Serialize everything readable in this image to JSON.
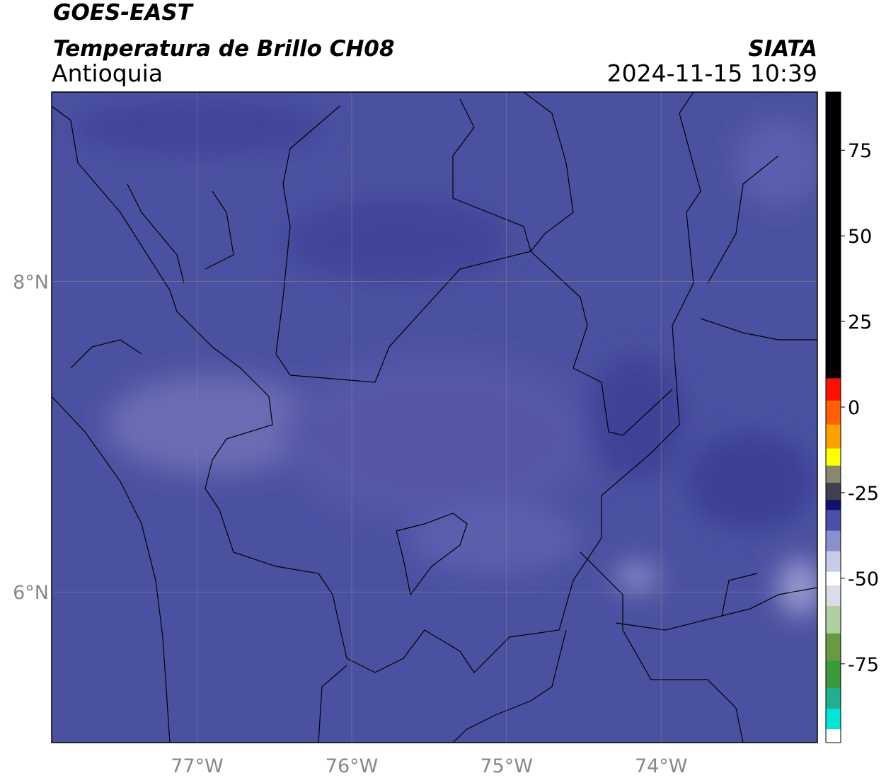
{
  "header": {
    "satellite": "GOES-EAST",
    "product": "Temperatura de Brillo CH08",
    "region": "Antioquia",
    "source": "SIATA",
    "datetime": "2024-11-15 10:39"
  },
  "map": {
    "lonlim": [
      -77.94,
      -72.99
    ],
    "latlim": [
      5.03,
      9.22
    ],
    "lonticks": [
      {
        "value": -77,
        "label": "77°W"
      },
      {
        "value": -76,
        "label": "76°W"
      },
      {
        "value": -75,
        "label": "75°W"
      },
      {
        "value": -74,
        "label": "74°W"
      }
    ],
    "latticks": [
      {
        "value": 8,
        "label": "8°N"
      },
      {
        "value": 6,
        "label": "6°N"
      }
    ],
    "grid": true
  },
  "colorbar": {
    "lim": [
      -98,
      92
    ],
    "ticks": [
      -75,
      -50,
      -25,
      0,
      25,
      50,
      75
    ],
    "stops": [
      {
        "value": -98,
        "color": "#ffffff"
      },
      {
        "value": -94,
        "color": "#00e5d6"
      },
      {
        "value": -88,
        "color": "#20b090"
      },
      {
        "value": -82,
        "color": "#3a9a3a"
      },
      {
        "value": -74,
        "color": "#6a9a40"
      },
      {
        "value": -66,
        "color": "#b0cfa0"
      },
      {
        "value": -58,
        "color": "#dcdce8"
      },
      {
        "value": -52,
        "color": "#ffffff"
      },
      {
        "value": -48,
        "color": "#c8cce8"
      },
      {
        "value": -42,
        "color": "#8a90cc"
      },
      {
        "value": -36,
        "color": "#4a50a8"
      },
      {
        "value": -30,
        "color": "#101070"
      },
      {
        "value": -27,
        "color": "#404050"
      },
      {
        "value": -22,
        "color": "#888870"
      },
      {
        "value": -17,
        "color": "#ffff00"
      },
      {
        "value": -12,
        "color": "#ffa000"
      },
      {
        "value": -5,
        "color": "#ff6000"
      },
      {
        "value": 2,
        "color": "#ff1000"
      },
      {
        "value": 8.5,
        "color": "#000000"
      }
    ]
  }
}
